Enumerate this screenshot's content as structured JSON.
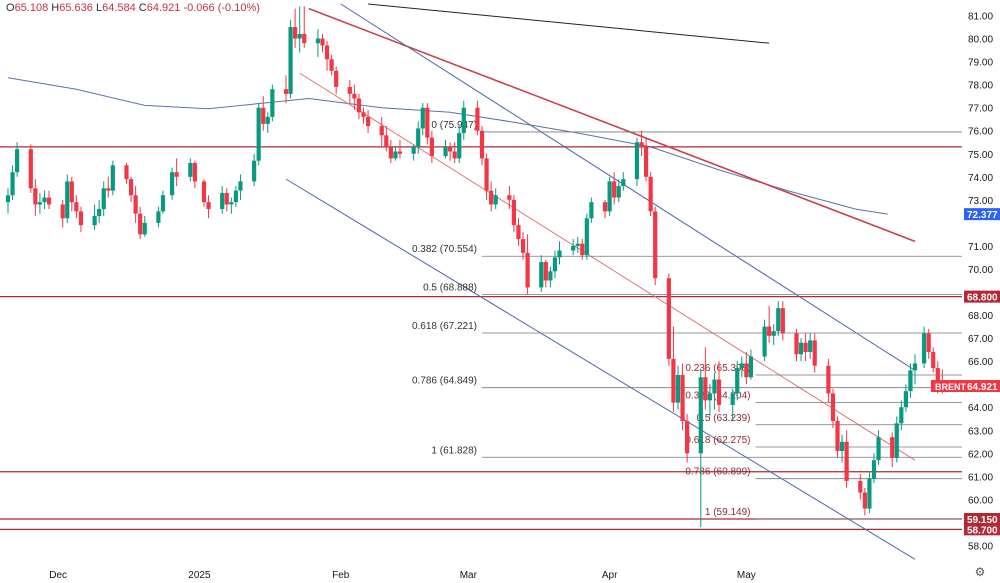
{
  "ohlc": {
    "open_label": "O",
    "open": "65.108",
    "high_label": "H",
    "high": "65.636",
    "low_label": "L",
    "low": "64.584",
    "close_label": "C",
    "close": "64.921",
    "change": "-0.066",
    "change_pct": "(-0.10%)"
  },
  "colors": {
    "up": "#089981",
    "down": "#f23645",
    "hline": "#b22833",
    "channel": "#4a66a8",
    "ma": "#5b73a6",
    "fib": "#555555",
    "blue_badge": "#2962ff",
    "trend_red": "#c8414d"
  },
  "settings_icon": "gear-icon",
  "chart_data": {
    "type": "candlestick",
    "symbol": "BRENT",
    "last_price": "64.921",
    "ma_value": "72.377",
    "ylim": [
      57.5,
      81.5
    ],
    "y_ticks": [
      "58.00",
      "60.00",
      "61.00",
      "62.00",
      "63.00",
      "64.00",
      "66.00",
      "67.00",
      "68.00",
      "70.00",
      "71.00",
      "73.00",
      "74.00",
      "75.00",
      "76.00",
      "77.00",
      "78.00",
      "79.00",
      "80.00",
      "81.00"
    ],
    "x_labels": [
      "Dec",
      "2025",
      "Feb",
      "Mar",
      "Apr",
      "May"
    ],
    "x_label_dates": [
      "2024-12-01",
      "2025-01-01",
      "2025-02-01",
      "2025-03-01",
      "2025-04-01",
      "2025-05-01"
    ],
    "x_range": [
      "2024-11-20",
      "2025-06-07"
    ],
    "horizontal_levels": [
      {
        "price": 75.3
      },
      {
        "price": 68.8,
        "label": "68.800"
      },
      {
        "price": 61.2
      },
      {
        "price": 59.15,
        "label": "59.150"
      },
      {
        "price": 58.7,
        "label": "58.700"
      }
    ],
    "fib_upper": {
      "x_from": "2025-03-04",
      "x_to": "2025-06-07",
      "levels": [
        {
          "text": "0 (75.947)",
          "price": 75.947
        },
        {
          "text": "0.382 (70.554)",
          "price": 70.554
        },
        {
          "text": "0.5 (68.888)",
          "price": 68.888
        },
        {
          "text": "0.618 (67.221)",
          "price": 67.221
        },
        {
          "text": "0.786 (64.849)",
          "price": 64.849
        },
        {
          "text": "1 (61.828)",
          "price": 61.828
        }
      ]
    },
    "fib_lower": {
      "x_from": "2025-05-03",
      "x_to": "2025-06-07",
      "levels": [
        {
          "text": "0.236 (65.398)",
          "price": 65.398
        },
        {
          "text": "0.382 (64.204)",
          "price": 64.204
        },
        {
          "text": "0.5 (63.239)",
          "price": 63.239
        },
        {
          "text": "0.618 (62.275)",
          "price": 62.275
        },
        {
          "text": "0.786 (60.899)",
          "price": 60.899
        },
        {
          "text": "1 (59.149)",
          "price": 59.149
        }
      ]
    },
    "trendlines": [
      {
        "name": "black-trendline",
        "color": "#222222",
        "p1": [
          "2025-02-07",
          81.5
        ],
        "p2": [
          "2025-05-06",
          79.8
        ]
      },
      {
        "name": "red-trendline",
        "color": "#c8414d",
        "p1": [
          "2025-01-25",
          81.3
        ],
        "p2": [
          "2025-06-07",
          71.2
        ]
      },
      {
        "name": "channel-upper",
        "color": "#4a66a8",
        "p1": [
          "2025-02-01",
          81.5
        ],
        "p2": [
          "2025-06-07",
          65.6
        ]
      },
      {
        "name": "channel-lower",
        "color": "#4a66a8",
        "p1": [
          "2025-01-20",
          73.9
        ],
        "p2": [
          "2025-06-07",
          57.4
        ]
      },
      {
        "name": "channel-mid",
        "color": "#e57373",
        "p1": [
          "2025-01-23",
          78.5
        ],
        "p2": [
          "2025-06-07",
          61.7
        ]
      }
    ],
    "moving_average": [
      [
        "2024-11-20",
        78.3
      ],
      [
        "2024-12-05",
        77.8
      ],
      [
        "2024-12-20",
        77.1
      ],
      [
        "2025-01-03",
        76.95
      ],
      [
        "2025-01-15",
        77.2
      ],
      [
        "2025-01-25",
        77.4
      ],
      [
        "2025-02-10",
        77.0
      ],
      [
        "2025-02-25",
        76.8
      ],
      [
        "2025-03-10",
        76.4
      ],
      [
        "2025-03-25",
        75.9
      ],
      [
        "2025-04-10",
        75.3
      ],
      [
        "2025-04-25",
        74.3
      ],
      [
        "2025-05-10",
        73.4
      ],
      [
        "2025-05-25",
        72.6
      ],
      [
        "2025-06-01",
        72.38
      ]
    ],
    "candles": [
      [
        "2024-11-20",
        72.9,
        73.5,
        72.4,
        73.2
      ],
      [
        "2024-11-21",
        73.2,
        74.5,
        73.0,
        74.2
      ],
      [
        "2024-11-22",
        74.2,
        75.5,
        74.0,
        75.2
      ],
      [
        "2024-11-25",
        75.2,
        75.4,
        73.3,
        73.5
      ],
      [
        "2024-11-26",
        73.5,
        73.9,
        72.3,
        72.8
      ],
      [
        "2024-11-27",
        72.8,
        73.3,
        72.4,
        72.9
      ],
      [
        "2024-11-28",
        72.9,
        73.4,
        72.6,
        73.1
      ],
      [
        "2024-11-29",
        73.1,
        73.4,
        72.6,
        72.8
      ],
      [
        "2024-12-02",
        72.8,
        73.0,
        71.8,
        72.2
      ],
      [
        "2024-12-03",
        72.2,
        74.1,
        72.0,
        73.8
      ],
      [
        "2024-12-04",
        73.8,
        74.0,
        72.5,
        72.9
      ],
      [
        "2024-12-05",
        72.9,
        73.2,
        72.2,
        72.5
      ],
      [
        "2024-12-06",
        72.5,
        72.7,
        71.6,
        71.9
      ],
      [
        "2024-12-09",
        71.9,
        72.8,
        71.7,
        72.3
      ],
      [
        "2024-12-10",
        72.3,
        73.0,
        72.0,
        72.6
      ],
      [
        "2024-12-11",
        72.6,
        73.8,
        72.3,
        73.5
      ],
      [
        "2024-12-12",
        73.5,
        74.0,
        73.1,
        73.4
      ],
      [
        "2024-12-13",
        73.4,
        74.7,
        73.2,
        74.5
      ],
      [
        "2024-12-16",
        74.5,
        74.6,
        73.7,
        73.9
      ],
      [
        "2024-12-17",
        73.9,
        74.0,
        72.9,
        73.2
      ],
      [
        "2024-12-18",
        73.2,
        73.6,
        72.0,
        72.4
      ],
      [
        "2024-12-19",
        72.4,
        72.7,
        71.3,
        71.5
      ],
      [
        "2024-12-20",
        71.5,
        72.3,
        71.4,
        72.0
      ],
      [
        "2024-12-23",
        72.0,
        72.7,
        71.8,
        72.5
      ],
      [
        "2024-12-24",
        72.5,
        73.4,
        72.4,
        73.2
      ],
      [
        "2024-12-26",
        73.2,
        74.4,
        73.0,
        74.2
      ],
      [
        "2024-12-27",
        74.2,
        74.8,
        73.6,
        74.0
      ],
      [
        "2024-12-30",
        74.0,
        74.8,
        73.8,
        74.6
      ],
      [
        "2024-12-31",
        74.6,
        74.7,
        73.5,
        73.8
      ],
      [
        "2025-01-02",
        73.8,
        73.9,
        72.7,
        72.9
      ],
      [
        "2025-01-03",
        72.9,
        73.2,
        72.2,
        72.6
      ],
      [
        "2025-01-06",
        72.6,
        73.6,
        72.4,
        73.3
      ],
      [
        "2025-01-07",
        73.3,
        73.5,
        72.5,
        72.8
      ],
      [
        "2025-01-08",
        72.8,
        73.1,
        72.4,
        72.9
      ],
      [
        "2025-01-09",
        72.9,
        73.6,
        72.7,
        73.4
      ],
      [
        "2025-01-10",
        73.4,
        74.1,
        73.0,
        73.8
      ],
      [
        "2025-01-13",
        73.8,
        75.0,
        73.6,
        74.7
      ],
      [
        "2025-01-14",
        74.7,
        77.2,
        74.5,
        77.0
      ],
      [
        "2025-01-15",
        77.0,
        77.5,
        76.0,
        76.3
      ],
      [
        "2025-01-16",
        76.3,
        76.8,
        75.9,
        76.6
      ],
      [
        "2025-01-17",
        76.6,
        78.0,
        76.4,
        77.8
      ],
      [
        "2025-01-20",
        77.8,
        78.4,
        77.2,
        77.6
      ],
      [
        "2025-01-21",
        77.6,
        80.8,
        77.4,
        80.5
      ],
      [
        "2025-01-22",
        80.5,
        81.3,
        79.6,
        80.0
      ],
      [
        "2025-01-23",
        80.0,
        81.4,
        79.4,
        80.2
      ],
      [
        "2025-01-24",
        80.2,
        81.4,
        79.6,
        79.8
      ],
      [
        "2025-01-27",
        79.8,
        80.4,
        79.2,
        80.0
      ],
      [
        "2025-01-28",
        80.0,
        80.2,
        79.4,
        79.7
      ],
      [
        "2025-01-29",
        79.7,
        79.9,
        78.6,
        79.1
      ],
      [
        "2025-01-30",
        79.1,
        79.3,
        78.4,
        78.6
      ],
      [
        "2025-01-31",
        78.6,
        78.8,
        77.6,
        77.9
      ],
      [
        "2025-02-03",
        77.9,
        78.2,
        77.2,
        77.6
      ],
      [
        "2025-02-04",
        77.6,
        78.0,
        76.9,
        77.4
      ],
      [
        "2025-02-05",
        77.4,
        77.6,
        76.5,
        76.8
      ],
      [
        "2025-02-06",
        76.8,
        77.0,
        76.3,
        76.6
      ],
      [
        "2025-02-07",
        76.6,
        76.9,
        75.9,
        76.2
      ],
      [
        "2025-02-10",
        76.2,
        76.6,
        75.3,
        75.8
      ],
      [
        "2025-02-11",
        75.8,
        76.2,
        75.1,
        75.3
      ],
      [
        "2025-02-12",
        75.3,
        75.6,
        74.6,
        74.8
      ],
      [
        "2025-02-13",
        74.8,
        75.3,
        74.7,
        75.1
      ],
      [
        "2025-02-14",
        75.1,
        75.6,
        74.8,
        75.0
      ],
      [
        "2025-02-17",
        75.0,
        75.4,
        74.7,
        75.3
      ],
      [
        "2025-02-18",
        75.3,
        76.4,
        75.0,
        76.1
      ],
      [
        "2025-02-19",
        76.1,
        77.2,
        75.8,
        77.0
      ],
      [
        "2025-02-20",
        77.0,
        77.2,
        75.4,
        75.7
      ],
      [
        "2025-02-21",
        75.7,
        76.0,
        74.6,
        74.9
      ],
      [
        "2025-02-24",
        74.9,
        75.6,
        74.8,
        75.3
      ],
      [
        "2025-02-25",
        75.3,
        75.5,
        74.7,
        75.1
      ],
      [
        "2025-02-26",
        75.1,
        75.5,
        74.6,
        74.8
      ],
      [
        "2025-02-27",
        74.8,
        76.2,
        74.6,
        75.9
      ],
      [
        "2025-02-28",
        75.9,
        77.3,
        75.6,
        77.0
      ],
      [
        "2025-03-03",
        77.0,
        77.3,
        75.8,
        76.0
      ],
      [
        "2025-03-04",
        76.0,
        76.2,
        74.5,
        74.8
      ],
      [
        "2025-03-05",
        74.8,
        75.0,
        73.0,
        73.4
      ],
      [
        "2025-03-06",
        73.4,
        73.8,
        72.5,
        72.8
      ],
      [
        "2025-03-07",
        72.8,
        73.5,
        72.6,
        73.2
      ],
      [
        "2025-03-10",
        73.2,
        73.6,
        72.6,
        73.0
      ],
      [
        "2025-03-11",
        73.0,
        73.2,
        71.6,
        71.9
      ],
      [
        "2025-03-12",
        71.9,
        72.2,
        71.0,
        71.3
      ],
      [
        "2025-03-13",
        71.3,
        71.6,
        70.4,
        70.7
      ],
      [
        "2025-03-14",
        70.7,
        71.5,
        68.9,
        69.2
      ],
      [
        "2025-03-17",
        69.2,
        70.6,
        69.0,
        70.3
      ],
      [
        "2025-03-18",
        70.3,
        70.4,
        69.2,
        69.5
      ],
      [
        "2025-03-19",
        69.5,
        70.1,
        69.2,
        69.9
      ],
      [
        "2025-03-20",
        69.9,
        70.8,
        69.6,
        70.5
      ],
      [
        "2025-03-21",
        70.5,
        71.2,
        70.2,
        70.8
      ],
      [
        "2025-03-24",
        70.8,
        71.3,
        70.6,
        71.0
      ],
      [
        "2025-03-25",
        71.0,
        71.4,
        70.7,
        71.1
      ],
      [
        "2025-03-26",
        71.1,
        71.3,
        70.4,
        70.6
      ],
      [
        "2025-03-27",
        70.6,
        72.4,
        70.4,
        72.2
      ],
      [
        "2025-03-28",
        72.2,
        73.1,
        72.0,
        72.9
      ],
      [
        "2025-03-31",
        72.9,
        73.0,
        72.2,
        72.5
      ],
      [
        "2025-04-01",
        72.5,
        74.0,
        72.3,
        73.8
      ],
      [
        "2025-04-02",
        73.8,
        74.2,
        72.8,
        73.1
      ],
      [
        "2025-04-03",
        73.1,
        73.9,
        72.9,
        73.6
      ],
      [
        "2025-04-04",
        73.6,
        74.2,
        73.4,
        73.9
      ],
      [
        "2025-04-07",
        73.9,
        75.7,
        73.6,
        75.5
      ],
      [
        "2025-04-08",
        75.5,
        76.0,
        74.9,
        75.3
      ],
      [
        "2025-04-09",
        75.3,
        75.7,
        73.8,
        74.0
      ],
      [
        "2025-04-10",
        74.0,
        74.2,
        72.3,
        72.5
      ],
      [
        "2025-04-11",
        72.5,
        72.7,
        69.3,
        69.6
      ],
      [
        "2025-04-14",
        69.6,
        69.8,
        65.8,
        66.1
      ],
      [
        "2025-04-15",
        66.1,
        67.5,
        63.8,
        64.2
      ],
      [
        "2025-04-16",
        64.2,
        65.8,
        63.9,
        65.4
      ],
      [
        "2025-04-17",
        65.4,
        65.9,
        63.0,
        63.4
      ],
      [
        "2025-04-18",
        63.4,
        63.7,
        61.6,
        62.0
      ],
      [
        "2025-04-21",
        62.0,
        65.6,
        58.8,
        65.3
      ],
      [
        "2025-04-22",
        65.3,
        66.6,
        63.9,
        64.3
      ],
      [
        "2025-04-23",
        64.3,
        65.0,
        63.6,
        64.6
      ],
      [
        "2025-04-24",
        64.6,
        65.5,
        63.9,
        65.2
      ],
      [
        "2025-04-25",
        65.2,
        66.0,
        63.8,
        64.1
      ],
      [
        "2025-04-28",
        64.1,
        64.8,
        63.4,
        64.6
      ],
      [
        "2025-04-29",
        64.6,
        66.0,
        64.3,
        65.7
      ],
      [
        "2025-04-30",
        65.7,
        66.2,
        65.3,
        65.9
      ],
      [
        "2025-05-01",
        65.9,
        66.4,
        65.0,
        65.3
      ],
      [
        "2025-05-02",
        65.3,
        66.5,
        65.2,
        66.2
      ],
      [
        "2025-05-05",
        66.2,
        67.8,
        66.0,
        67.5
      ],
      [
        "2025-05-06",
        67.5,
        68.4,
        66.8,
        67.1
      ],
      [
        "2025-05-07",
        67.1,
        67.6,
        66.7,
        67.3
      ],
      [
        "2025-05-08",
        67.3,
        68.6,
        67.1,
        68.3
      ],
      [
        "2025-05-09",
        68.3,
        68.6,
        66.9,
        67.2
      ],
      [
        "2025-05-12",
        67.2,
        67.4,
        66.0,
        66.3
      ],
      [
        "2025-05-13",
        66.3,
        67.0,
        66.0,
        66.8
      ],
      [
        "2025-05-14",
        66.8,
        67.2,
        66.0,
        66.4
      ],
      [
        "2025-05-15",
        66.4,
        67.2,
        66.1,
        66.9
      ],
      [
        "2025-05-16",
        66.9,
        67.2,
        65.5,
        65.8
      ],
      [
        "2025-05-19",
        65.8,
        66.1,
        64.2,
        64.6
      ],
      [
        "2025-05-20",
        64.6,
        64.8,
        63.1,
        63.4
      ],
      [
        "2025-05-21",
        63.4,
        63.6,
        61.8,
        62.1
      ],
      [
        "2025-05-22",
        62.1,
        62.8,
        61.6,
        62.5
      ],
      [
        "2025-05-23",
        62.5,
        63.0,
        60.5,
        60.8
      ],
      [
        "2025-05-26",
        60.8,
        61.1,
        60.0,
        60.3
      ],
      [
        "2025-05-27",
        60.3,
        60.5,
        59.3,
        59.6
      ],
      [
        "2025-05-28",
        59.6,
        61.2,
        59.4,
        60.9
      ],
      [
        "2025-05-29",
        60.9,
        62.0,
        60.7,
        61.7
      ],
      [
        "2025-05-30",
        61.7,
        63.0,
        61.5,
        62.7
      ],
      [
        "2025-06-02",
        62.7,
        62.9,
        61.4,
        61.8
      ],
      [
        "2025-06-03",
        61.8,
        63.6,
        61.6,
        63.3
      ],
      [
        "2025-06-04",
        63.3,
        64.3,
        63.0,
        64.0
      ],
      [
        "2025-06-05",
        64.0,
        65.0,
        63.8,
        64.7
      ],
      [
        "2025-06-06",
        64.7,
        65.9,
        64.4,
        65.6
      ],
      [
        "2025-06-07",
        65.6,
        66.3,
        65.0,
        65.9
      ],
      [
        "2025-06-09",
        65.9,
        67.5,
        65.7,
        67.2
      ],
      [
        "2025-06-10",
        67.2,
        67.4,
        66.1,
        66.4
      ],
      [
        "2025-06-11",
        66.4,
        66.6,
        65.5,
        65.7
      ],
      [
        "2025-06-12",
        65.7,
        66.0,
        64.6,
        65.1
      ],
      [
        "2025-06-13",
        65.108,
        65.636,
        64.584,
        64.921
      ]
    ]
  }
}
